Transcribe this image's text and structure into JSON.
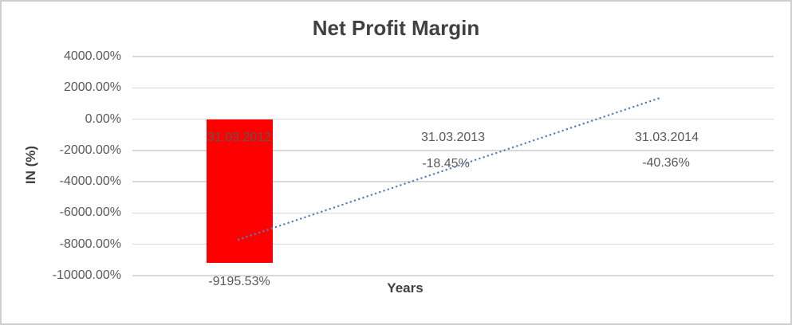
{
  "chart_data": {
    "type": "bar",
    "title": "Net Profit Margin",
    "xlabel": "Years",
    "ylabel": "IN (%)",
    "categories": [
      "31.03.2012",
      "31.03.2013",
      "31.03.2014"
    ],
    "values": [
      -9195.53,
      -18.45,
      -40.36
    ],
    "data_labels": [
      "-9195.53%",
      "-18.45%",
      "-40.36%"
    ],
    "yticks": [
      4000,
      2000,
      0,
      -2000,
      -4000,
      -6000,
      -8000,
      -10000
    ],
    "ytick_labels": [
      "4000.00%",
      "2000.00%",
      "0.00%",
      "-2000.00%",
      "-4000.00%",
      "-6000.00%",
      "-8000.00%",
      "-10000.00%"
    ],
    "ylim": [
      -10000,
      4000
    ],
    "grid": "horizontal",
    "legend": "none",
    "bar_color": "#ff0000",
    "label_color": "#595959",
    "gridline_color": "#d9d9d9",
    "title_color": "#404040",
    "trendline": {
      "type": "linear",
      "style": "dotted",
      "color": "#4d81c2",
      "start_value": -7700,
      "end_value": 1400
    }
  }
}
